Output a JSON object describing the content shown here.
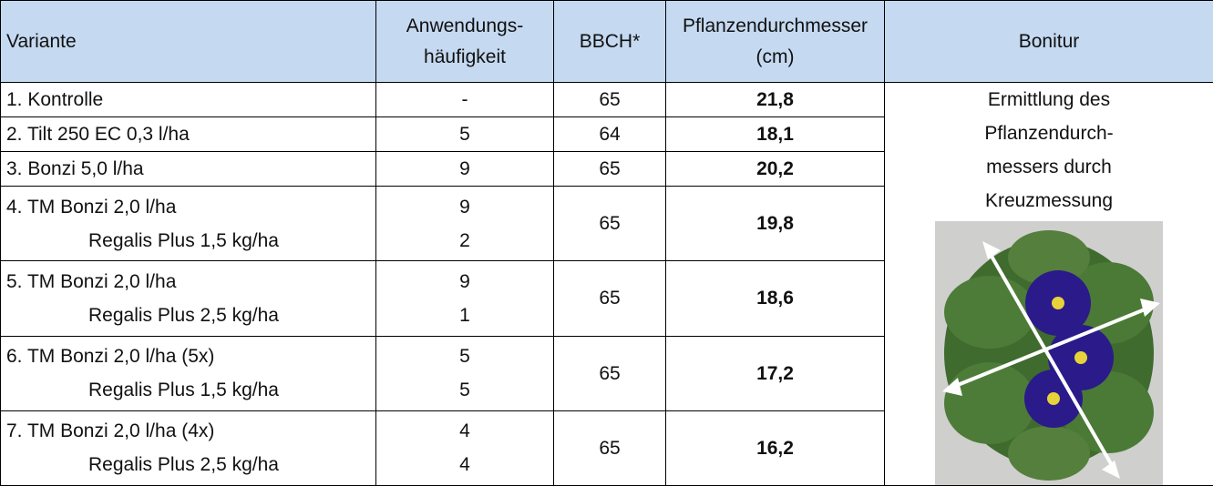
{
  "table": {
    "header": [
      [
        "Variante"
      ],
      [
        "Anwendungs-",
        "häufigkeit"
      ],
      [
        "BBCH*"
      ],
      [
        "Pflanzendurchmesser",
        "(cm)"
      ],
      [
        "Bonitur"
      ]
    ],
    "rows": [
      {
        "variante": [
          "1. Kontrolle"
        ],
        "haeufigkeit": [
          "-"
        ],
        "bbch": "65",
        "durchmesser": "21,8"
      },
      {
        "variante": [
          "2. Tilt 250 EC 0,3 l/ha"
        ],
        "haeufigkeit": [
          "5"
        ],
        "bbch": "64",
        "durchmesser": "18,1"
      },
      {
        "variante": [
          "3. Bonzi 5,0 l/ha"
        ],
        "haeufigkeit": [
          "9"
        ],
        "bbch": "65",
        "durchmesser": "20,2"
      },
      {
        "variante": [
          "4. TM Bonzi 2,0 l/ha",
          "Regalis Plus 1,5 kg/ha"
        ],
        "haeufigkeit": [
          "9",
          "2"
        ],
        "bbch": "65",
        "durchmesser": "19,8"
      },
      {
        "variante": [
          "5. TM Bonzi 2,0 l/ha",
          "Regalis Plus 2,5 kg/ha"
        ],
        "haeufigkeit": [
          "9",
          "1"
        ],
        "bbch": "65",
        "durchmesser": "18,6"
      },
      {
        "variante": [
          "6. TM Bonzi 2,0 l/ha (5x)",
          "Regalis Plus 1,5 kg/ha"
        ],
        "haeufigkeit": [
          "5",
          "5"
        ],
        "bbch": "65",
        "durchmesser": "17,2"
      },
      {
        "variante": [
          "7. TM Bonzi 2,0 l/ha (4x)",
          "Regalis Plus 2,5 kg/ha"
        ],
        "haeufigkeit": [
          "4",
          "4"
        ],
        "bbch": "65",
        "durchmesser": "16,2"
      }
    ],
    "bonitur": [
      "Ermittlung des",
      "Pflanzendurch-",
      "messers durch",
      "Kreuzmessung"
    ]
  }
}
